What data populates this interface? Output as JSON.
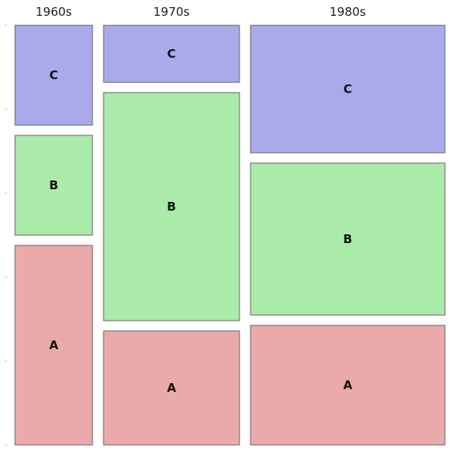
{
  "chart_data": {
    "type": "mosaic",
    "columns": [
      {
        "name": "1960s",
        "weight": 98,
        "segments": [
          {
            "category": "A",
            "value": 252
          },
          {
            "category": "B",
            "value": 126
          },
          {
            "category": "C",
            "value": 126
          }
        ]
      },
      {
        "name": "1970s",
        "weight": 172,
        "segments": [
          {
            "category": "A",
            "value": 144
          },
          {
            "category": "B",
            "value": 288
          },
          {
            "category": "C",
            "value": 72
          }
        ]
      },
      {
        "name": "1980s",
        "weight": 246,
        "segments": [
          {
            "category": "A",
            "value": 151
          },
          {
            "category": "B",
            "value": 192
          },
          {
            "category": "C",
            "value": 161
          }
        ]
      }
    ],
    "categories": [
      "A",
      "B",
      "C"
    ],
    "colors": {
      "A": "#ebaaaa",
      "B": "#aaebaa",
      "C": "#aaaaeb"
    },
    "stack_order": "A-bottom"
  }
}
